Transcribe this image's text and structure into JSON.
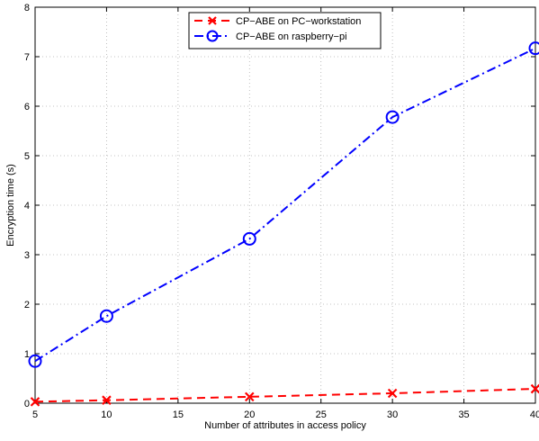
{
  "chart_data": {
    "type": "line",
    "title": "",
    "xlabel": "Number of attributes in  access policy",
    "ylabel": "Encryption time (s)",
    "xlim": [
      5,
      40
    ],
    "ylim": [
      0,
      8
    ],
    "xticks": [
      5,
      10,
      15,
      20,
      25,
      30,
      35,
      40
    ],
    "yticks": [
      0,
      1,
      2,
      3,
      4,
      5,
      6,
      7,
      8
    ],
    "grid": true,
    "legend_position": "top-center",
    "x": [
      5,
      10,
      20,
      30,
      40
    ],
    "series": [
      {
        "name": "CP−ABE on PC−workstation",
        "values": [
          0.03,
          0.06,
          0.13,
          0.2,
          0.29
        ],
        "color": "#ff0000",
        "line_style": "dashed",
        "marker": "x"
      },
      {
        "name": "CP−ABE on raspberry−pi",
        "values": [
          0.85,
          1.76,
          3.32,
          5.78,
          7.17
        ],
        "color": "#0000ff",
        "line_style": "dash-dot",
        "marker": "circle"
      }
    ]
  }
}
